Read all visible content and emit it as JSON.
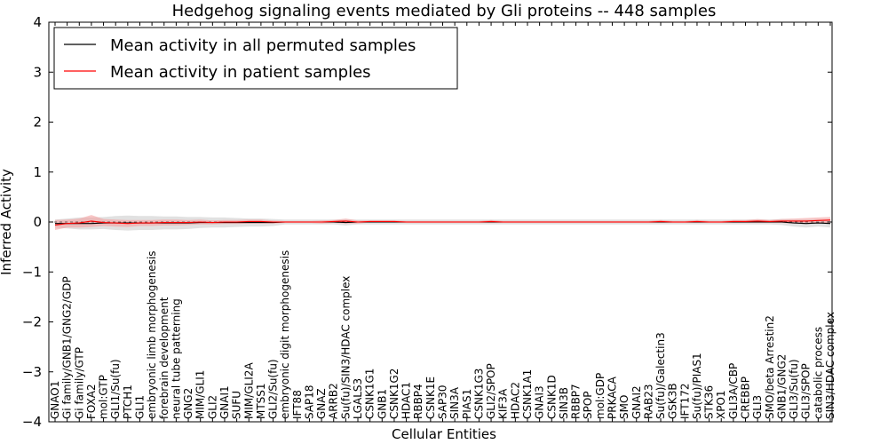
{
  "chart_data": {
    "type": "line",
    "title": "Hedgehog signaling events mediated by Gli proteins -- 448 samples",
    "xlabel": "Cellular Entities",
    "ylabel": "Inferred Activity",
    "ylim": [
      -4,
      4
    ],
    "yticks": [
      4,
      3,
      2,
      1,
      0,
      -1,
      -2,
      -3,
      -4
    ],
    "ytick_labels": [
      "4",
      "3",
      "2",
      "1",
      "0",
      "−1",
      "−2",
      "−3",
      "−4"
    ],
    "legend_position": "upper-left",
    "categories": [
      "GNAO1",
      "Gi family/GNB1/GNG2/GDP",
      "Gi family/GTP",
      "FOXA2",
      "mol:GTP",
      "GLI1/Su(fu)",
      "PTCH1",
      "GLI1",
      "embryonic limb morphogenesis",
      "forebrain development",
      "neural tube patterning",
      "GNG2",
      "MIM/GLI1",
      "GLI2",
      "GNAI1",
      "SUFU",
      "MIM/GLI2A",
      "MTSS1",
      "GLI2/Su(fu)",
      "embryonic digit morphogenesis",
      "IFT88",
      "SAP18",
      "GNAZ",
      "ARRB2",
      "Su(fu)/SIN3/HDAC complex",
      "LGALS3",
      "CSNK1G1",
      "GNB1",
      "CSNK1G2",
      "HDAC1",
      "RBBP4",
      "CSNK1E",
      "SAP30",
      "SIN3A",
      "PIAS1",
      "CSNK1G3",
      "GLI2/SPOP",
      "KIF3A",
      "HDAC2",
      "CSNK1A1",
      "GNAI3",
      "CSNK1D",
      "SIN3B",
      "RBBP7",
      "SPOP",
      "mol:GDP",
      "PRKACA",
      "SMO",
      "GNAI2",
      "RAB23",
      "Su(fu)/Galectin3",
      "GSK3B",
      "IFT172",
      "Su(fu)/PIAS1",
      "STK36",
      "XPO1",
      "GLI3A/CBP",
      "CREBBP",
      "GLI3",
      "SMO/beta Arrestin2",
      "GNB1/GNG2",
      "GLI3/Su(fu)",
      "GLI3/SPOP",
      "catabolic process",
      "SIN3/HDAC complex"
    ],
    "series": [
      {
        "name": "Mean activity in all permuted samples",
        "color": "#000000",
        "values": [
          -0.03,
          -0.03,
          -0.03,
          -0.03,
          -0.02,
          -0.02,
          -0.02,
          -0.02,
          -0.02,
          -0.02,
          -0.02,
          -0.02,
          -0.01,
          -0.01,
          -0.01,
          -0.01,
          -0.01,
          -0.01,
          -0.01,
          0,
          0,
          0,
          0,
          0,
          -0.01,
          0,
          0,
          0,
          0,
          0,
          0,
          0,
          0,
          0,
          0,
          0,
          0,
          0,
          0,
          0,
          0,
          0,
          0,
          0,
          0,
          0,
          0,
          0,
          0,
          0,
          0,
          0,
          0,
          0,
          0,
          0,
          0,
          0,
          0,
          0,
          0,
          -0.02,
          -0.03,
          -0.02,
          -0.03
        ],
        "band": [
          0.08,
          0.1,
          0.12,
          0.12,
          0.12,
          0.14,
          0.15,
          0.14,
          0.14,
          0.13,
          0.13,
          0.12,
          0.11,
          0.1,
          0.1,
          0.09,
          0.08,
          0.08,
          0.07,
          0.05,
          0.05,
          0.05,
          0.05,
          0.05,
          0.06,
          0.05,
          0.05,
          0.05,
          0.05,
          0.05,
          0.05,
          0.05,
          0.05,
          0.05,
          0.05,
          0.05,
          0.05,
          0.05,
          0.05,
          0.05,
          0.05,
          0.05,
          0.05,
          0.05,
          0.05,
          0.05,
          0.05,
          0.05,
          0.05,
          0.05,
          0.05,
          0.05,
          0.05,
          0.05,
          0.05,
          0.05,
          0.05,
          0.05,
          0.05,
          0.05,
          0.06,
          0.07,
          0.08,
          0.07,
          0.08
        ],
        "band_color": "#c8c8c8"
      },
      {
        "name": "Mean activity in patient samples",
        "color": "#ff0000",
        "values": [
          -0.06,
          -0.03,
          -0.02,
          0.02,
          -0.01,
          -0.02,
          -0.03,
          -0.02,
          -0.02,
          -0.01,
          -0.01,
          -0.01,
          0,
          -0.01,
          0,
          0,
          0.01,
          0.01,
          0,
          0,
          0,
          0,
          0,
          0.01,
          0.02,
          0,
          0.01,
          0.01,
          0.01,
          0,
          0,
          0,
          0,
          0,
          0,
          0,
          0.01,
          0,
          0,
          0,
          0,
          0,
          0,
          0,
          0,
          0,
          0,
          0,
          0,
          0,
          0.01,
          0,
          0,
          0.01,
          0,
          0,
          0.01,
          0.01,
          0.02,
          0.01,
          0.02,
          0.02,
          0.02,
          0.03,
          0.04
        ],
        "band": [
          0.1,
          0.08,
          0.09,
          0.12,
          0.07,
          0.07,
          0.07,
          0.06,
          0.06,
          0.06,
          0.06,
          0.05,
          0.05,
          0.04,
          0.04,
          0.04,
          0.04,
          0.04,
          0.03,
          0.02,
          0.02,
          0.02,
          0.03,
          0.03,
          0.05,
          0.03,
          0.02,
          0.02,
          0.02,
          0.02,
          0.02,
          0.02,
          0.02,
          0.02,
          0.02,
          0.02,
          0.03,
          0.02,
          0.02,
          0.02,
          0.02,
          0.02,
          0.02,
          0.02,
          0.02,
          0.02,
          0.02,
          0.02,
          0.02,
          0.02,
          0.03,
          0.02,
          0.02,
          0.03,
          0.02,
          0.02,
          0.03,
          0.03,
          0.04,
          0.03,
          0.04,
          0.05,
          0.06,
          0.06,
          0.06
        ],
        "band_color": "#f4a0a0"
      }
    ]
  }
}
